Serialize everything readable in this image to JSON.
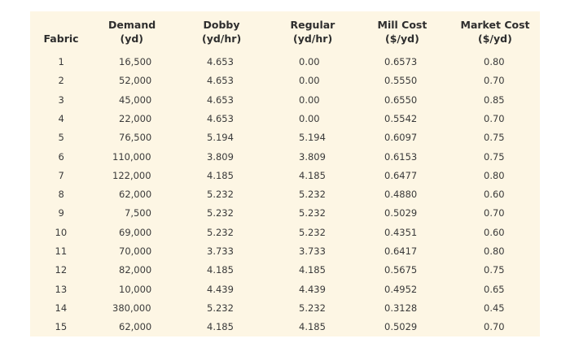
{
  "table": {
    "header": [
      [
        "Fabric"
      ],
      [
        "Demand",
        "(yd)"
      ],
      [
        "Dobby",
        "(yd/hr)"
      ],
      [
        "Regular",
        "(yd/hr)"
      ],
      [
        "Mill Cost",
        "($/yd)"
      ],
      [
        "Market Cost",
        "($/yd)"
      ]
    ],
    "rows": [
      [
        "1",
        "16,500",
        "4.653",
        "0.00",
        "0.6573",
        "0.80"
      ],
      [
        "2",
        "52,000",
        "4.653",
        "0.00",
        "0.5550",
        "0.70"
      ],
      [
        "3",
        "45,000",
        "4.653",
        "0.00",
        "0.6550",
        "0.85"
      ],
      [
        "4",
        "22,000",
        "4.653",
        "0.00",
        "0.5542",
        "0.70"
      ],
      [
        "5",
        "76,500",
        "5.194",
        "5.194",
        "0.6097",
        "0.75"
      ],
      [
        "6",
        "110,000",
        "3.809",
        "3.809",
        "0.6153",
        "0.75"
      ],
      [
        "7",
        "122,000",
        "4.185",
        "4.185",
        "0.6477",
        "0.80"
      ],
      [
        "8",
        "62,000",
        "5.232",
        "5.232",
        "0.4880",
        "0.60"
      ],
      [
        "9",
        "7,500",
        "5.232",
        "5.232",
        "0.5029",
        "0.70"
      ],
      [
        "10",
        "69,000",
        "5.232",
        "5.232",
        "0.4351",
        "0.60"
      ],
      [
        "11",
        "70,000",
        "3.733",
        "3.733",
        "0.6417",
        "0.80"
      ],
      [
        "12",
        "82,000",
        "4.185",
        "4.185",
        "0.5675",
        "0.75"
      ],
      [
        "13",
        "10,000",
        "4.439",
        "4.439",
        "0.4952",
        "0.65"
      ],
      [
        "14",
        "380,000",
        "5.232",
        "5.232",
        "0.3128",
        "0.45"
      ],
      [
        "15",
        "62,000",
        "4.185",
        "4.185",
        "0.5029",
        "0.70"
      ]
    ]
  }
}
